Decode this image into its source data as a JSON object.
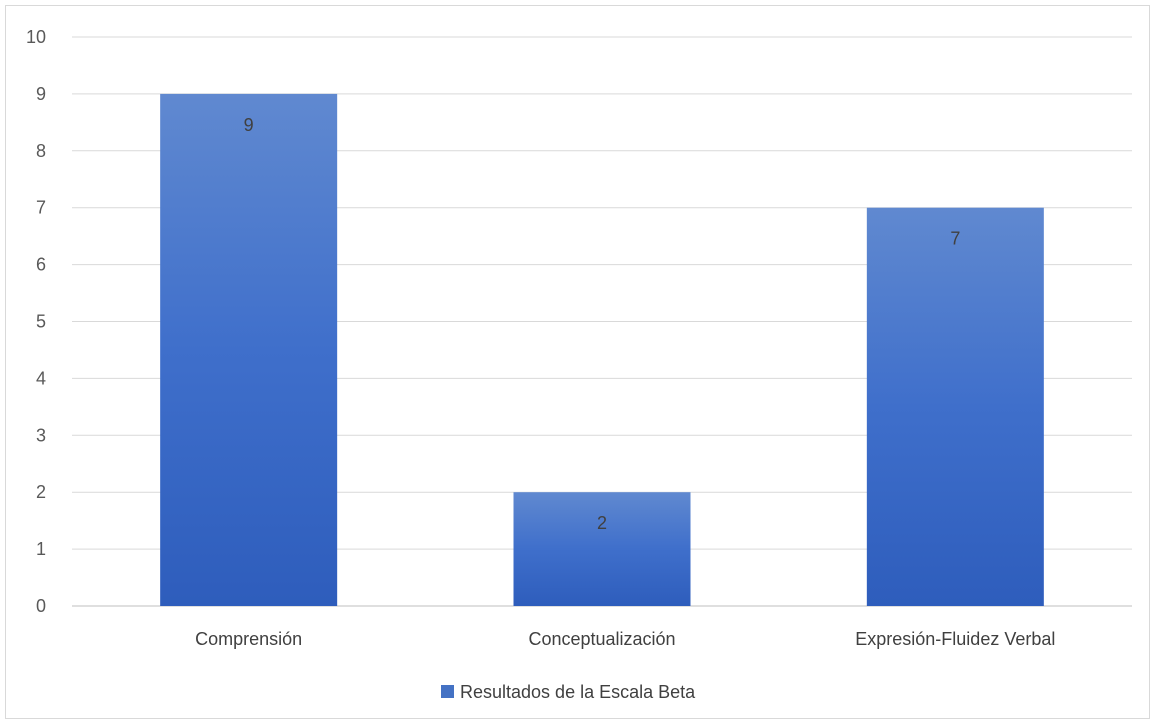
{
  "chart_data": {
    "type": "bar",
    "categories": [
      "Comprensión",
      "Conceptualización",
      "Expresión-Fluidez Verbal"
    ],
    "series": [
      {
        "name": "Resultados de la Escala Beta",
        "values": [
          9,
          2,
          7
        ]
      }
    ],
    "ylim": [
      0,
      10
    ],
    "yticks": [
      0,
      1,
      2,
      3,
      4,
      5,
      6,
      7,
      8,
      9,
      10
    ],
    "grid": true,
    "data_labels": true,
    "legend_position": "bottom",
    "colors": {
      "bar_top": "#6089D0",
      "bar_bottom": "#2E5DBC",
      "grid": "#D9D9D9",
      "axis": "#BFBFBF"
    }
  }
}
